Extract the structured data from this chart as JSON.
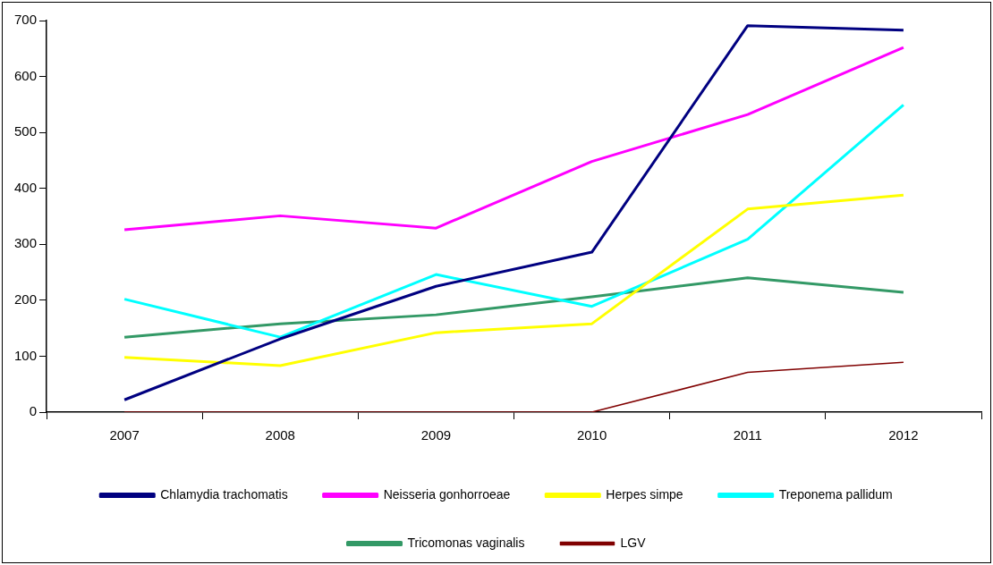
{
  "chart_data": {
    "type": "line",
    "categories": [
      "2007",
      "2008",
      "2009",
      "2010",
      "2011",
      "2012"
    ],
    "series": [
      {
        "name": "Chlamydia trachomatis",
        "color": "#000080",
        "values": [
          22,
          131,
          225,
          286,
          691,
          683
        ]
      },
      {
        "name": "Neisseria gonhorroeae",
        "color": "#ff00ff",
        "values": [
          326,
          351,
          329,
          448,
          532,
          652
        ]
      },
      {
        "name": "Herpes simpe",
        "color": "#ffff00",
        "values": [
          98,
          83,
          142,
          158,
          363,
          388
        ]
      },
      {
        "name": "Treponema pallidum",
        "color": "#00ffff",
        "values": [
          202,
          134,
          246,
          189,
          309,
          549
        ]
      },
      {
        "name": "Tricomonas vaginalis",
        "color": "#339966",
        "values": [
          134,
          158,
          174,
          206,
          240,
          214
        ]
      },
      {
        "name": "LGV",
        "color": "#800000",
        "values": [
          0,
          0,
          0,
          0,
          71,
          89
        ]
      }
    ],
    "ylim": [
      0,
      700
    ],
    "yticks": [
      0,
      100,
      200,
      300,
      400,
      500,
      600,
      700
    ],
    "grid": false,
    "legend": "bottom",
    "marker": "none",
    "line_style": "solid"
  }
}
